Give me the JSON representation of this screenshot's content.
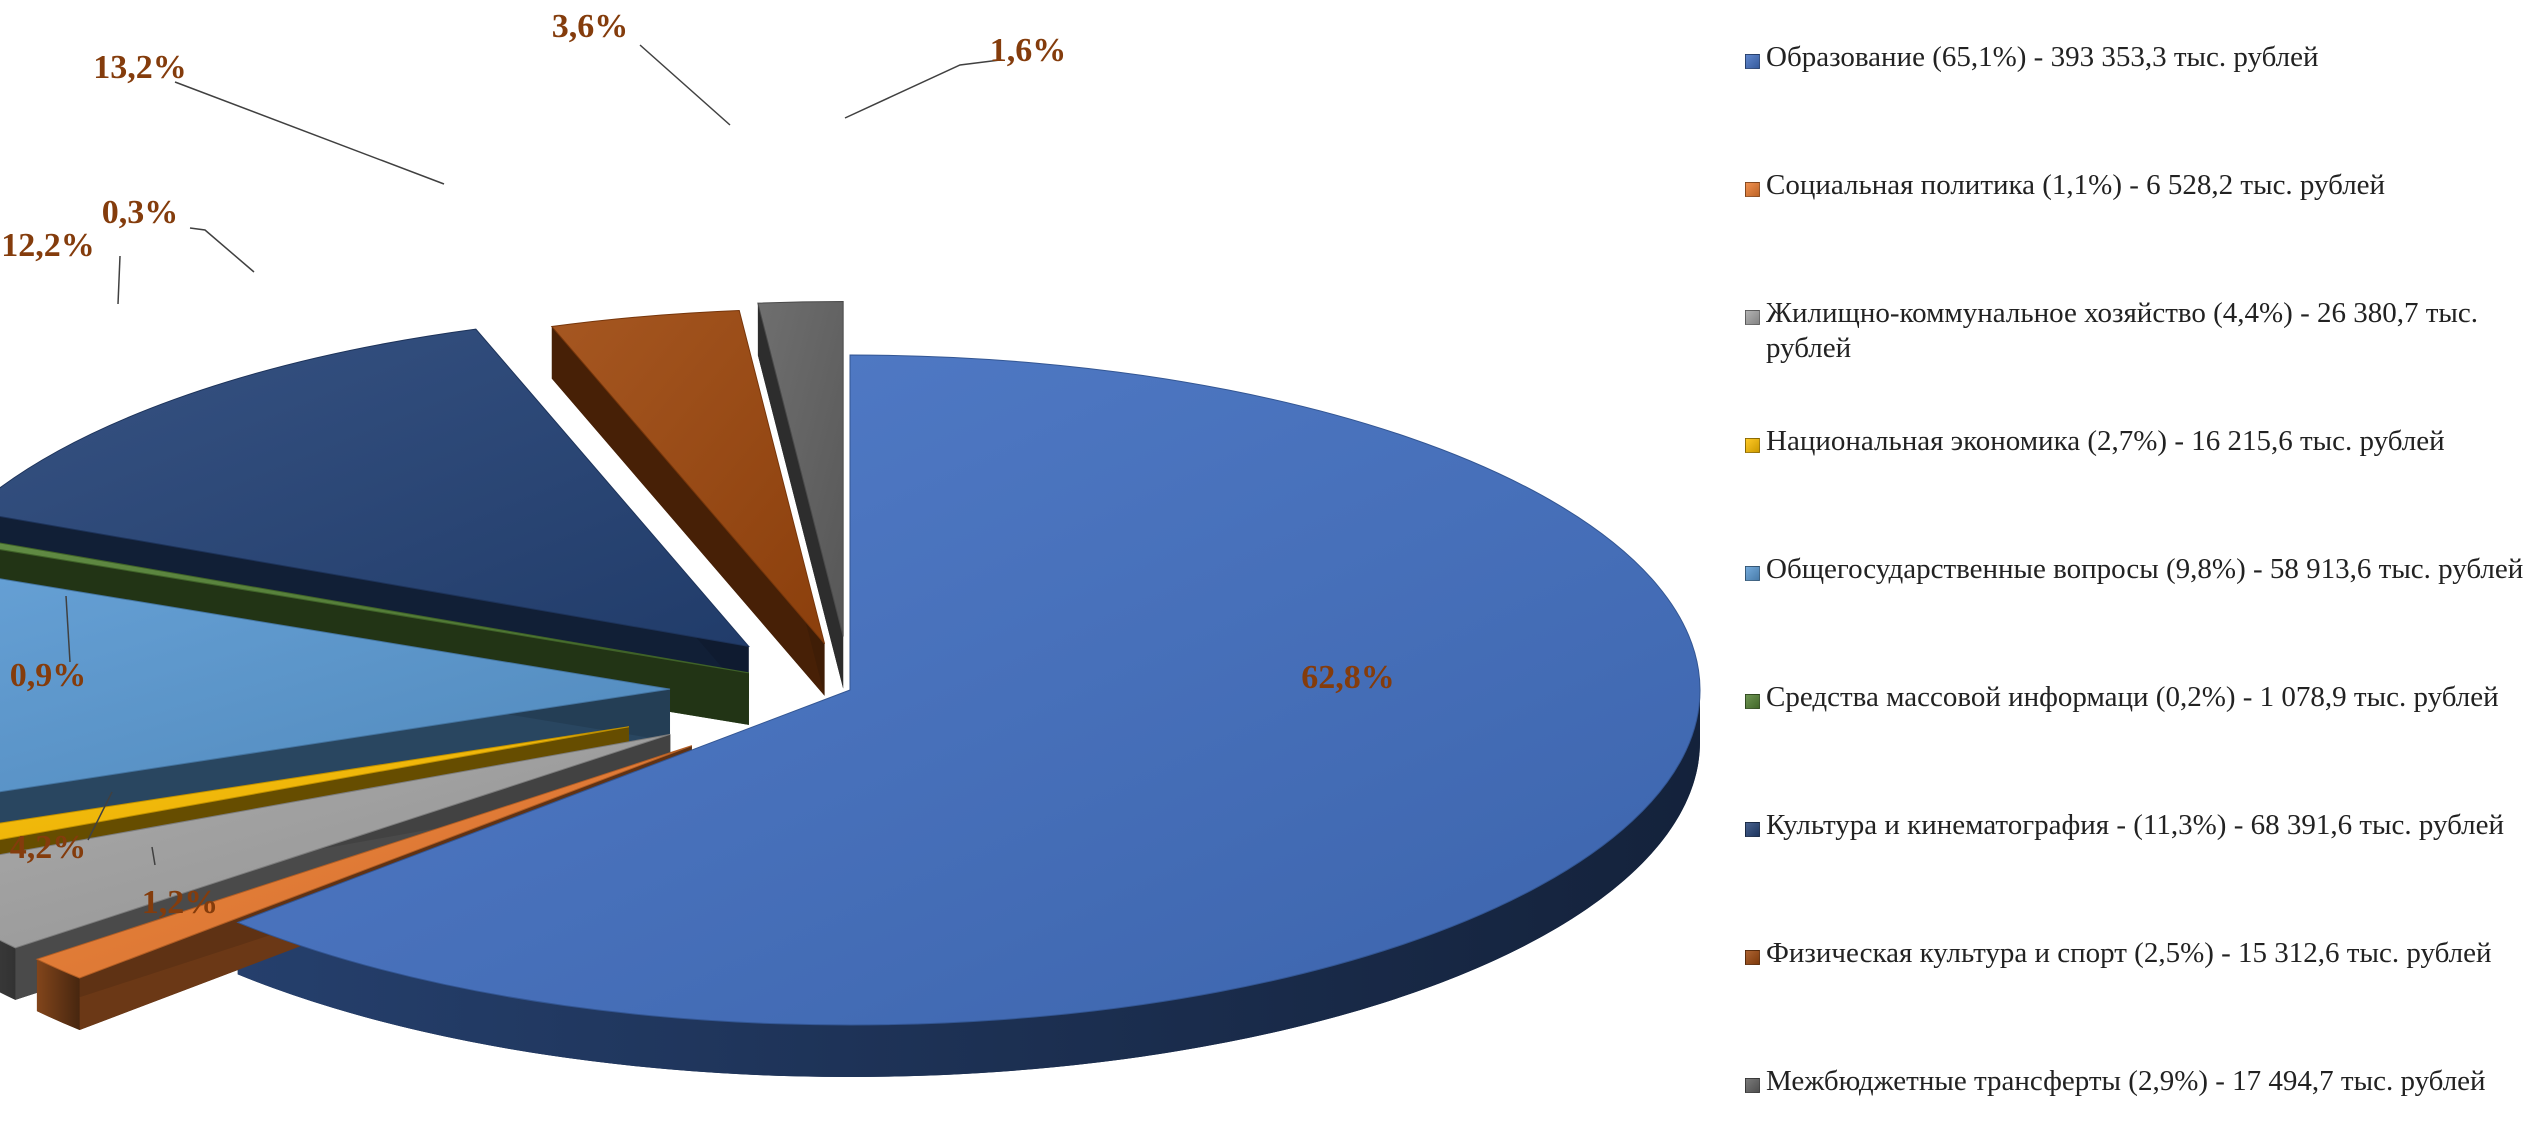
{
  "chart_data": {
    "type": "pie",
    "variant": "3d-exploded",
    "slices": [
      {
        "label": "62,8%",
        "value": 62.8,
        "color": "#4472C4",
        "legend": "Образование (65,1%) - 393 353,3 тыс. рублей"
      },
      {
        "label": "1,2%",
        "value": 1.2,
        "color": "#ED7D31",
        "legend": "Социальная политика (1,1%) - 6 528,2 тыс. рублей"
      },
      {
        "label": "4,2%",
        "value": 4.2,
        "color": "#A5A5A5",
        "legend": "Жилищно-коммунальное хозяйство (4,4%) - 26 380,7 тыс. рублей"
      },
      {
        "label": "0,9%",
        "value": 0.9,
        "color": "#FFC000",
        "legend": "Национальная экономика (2,7%) - 16 215,6 тыс. рублей"
      },
      {
        "label": "12,2%",
        "value": 12.2,
        "color": "#5B9BD5",
        "legend": "Общегосударственные вопросы (9,8%) - 58 913,6 тыс. рублей"
      },
      {
        "label": "0,3%",
        "value": 0.3,
        "color": "#548235",
        "legend": "Средства массовой информаци (0,2%) - 1 078,9 тыс. рублей"
      },
      {
        "label": "13,2%",
        "value": 13.2,
        "color": "#264478",
        "legend": "Культура и кинематография - (11,3%) - 68 391,6 тыс. рублей"
      },
      {
        "label": "3,6%",
        "value": 3.6,
        "color": "#9E480E",
        "legend": "Физическая культура  и спорт (2,5%) - 15 312,6 тыс. рублей"
      },
      {
        "label": "1,6%",
        "value": 1.6,
        "color": "#636363",
        "legend": "Межбюджетные трансферты (2,9%) - 17 494,7 тыс. рублей"
      }
    ],
    "label_color": "#843C0C",
    "legend_position": "right"
  }
}
